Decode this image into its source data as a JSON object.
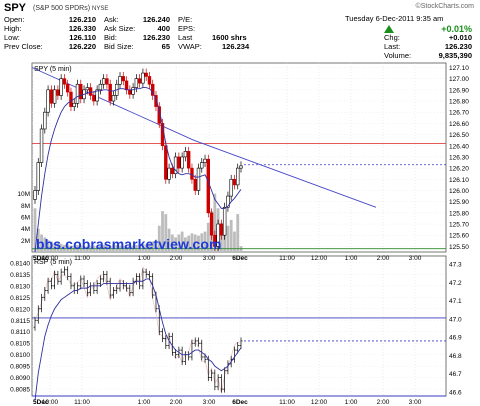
{
  "header": {
    "symbol": "SPY",
    "symbol_desc": "(S&P 500 SPDRs)",
    "exchange": "NYSE",
    "brand": "©StockCharts.com",
    "date": "Tuesday 6-Dec-2011 9:35 am",
    "change_pct": "+0.01%",
    "quote": {
      "open_label": "Open:",
      "open": "126.210",
      "high_label": "High:",
      "high": "126.330",
      "low_label": "Low:",
      "low": "126.110",
      "prev_label": "Prev Close:",
      "prev": "126.220",
      "ask_label": "Ask:",
      "ask": "126.240",
      "asksize_label": "Ask Size:",
      "asksize": "400",
      "bid_label": "Bid:",
      "bid": "126.230",
      "bidsize_label": "Bid Size:",
      "bidsize": "65",
      "pe_label": "P/E:",
      "eps_label": "EPS:",
      "last_label": "Last",
      "last_shares": "1600 shrs",
      "vwap_label": "VWAP:",
      "vwap": "126.234",
      "chg_label": "Chg:",
      "chg": "+0.010",
      "last2_label": "Last:",
      "last2": "126.230",
      "volume_label": "Volume:",
      "volume": "9,835,390"
    }
  },
  "watermark": "bbs.cobrasmarketview.com",
  "colors": {
    "up": "#000000",
    "down": "#cc0000",
    "ma": "#3030a0",
    "trend": "#4848c8",
    "hline_red": "#e04040",
    "hline_green": "#2a8a2a",
    "hline_blue": "#3a3ac0",
    "volume": "#bdbdbd",
    "rsi_aux": "#e8b4b4"
  },
  "chart_data": [
    {
      "type": "candlestick",
      "panel_label": "SPY (5 min)",
      "x_tick_labels": [
        "5Dec",
        "10:00",
        "11:00",
        "1:00",
        "2:00",
        "3:00",
        "6Dec",
        "11:00",
        "12:00",
        "1:00",
        "2:00",
        "3:00"
      ],
      "y_tick_labels": [
        "127.10",
        "127.00",
        "126.90",
        "126.80",
        "126.70",
        "126.60",
        "126.50",
        "126.40",
        "126.30",
        "126.20",
        "126.10",
        "126.00",
        "125.90",
        "125.80",
        "125.70",
        "125.60",
        "125.50"
      ],
      "ylim": [
        125.45,
        127.14
      ],
      "volume_tick_labels": [
        "10M",
        "8M",
        "6M",
        "4M",
        "2M"
      ],
      "close": [
        126.0,
        126.25,
        126.55,
        126.7,
        126.9,
        126.78,
        126.9,
        126.85,
        127.0,
        126.95,
        126.88,
        126.75,
        126.78,
        126.95,
        126.82,
        126.9,
        126.92,
        126.85,
        126.8,
        126.9,
        126.95,
        127.0,
        126.95,
        126.8,
        126.85,
        126.95,
        127.02,
        126.98,
        126.9,
        126.86,
        126.92,
        127.0,
        126.96,
        127.05,
        127.02,
        126.95,
        126.85,
        126.75,
        126.6,
        126.4,
        126.1,
        126.2,
        126.15,
        126.3,
        126.2,
        126.3,
        126.35,
        126.2,
        126.1,
        126.0,
        126.2,
        126.25,
        126.28,
        125.8,
        125.6,
        125.5,
        125.7,
        125.6,
        125.85,
        125.95,
        126.1,
        126.05,
        126.2,
        126.22
      ],
      "ma": [
        125.45,
        125.7,
        125.95,
        126.15,
        126.32,
        126.45,
        126.55,
        126.63,
        126.7,
        126.75,
        126.78,
        126.8,
        126.82,
        126.84,
        126.85,
        126.86,
        126.87,
        126.88,
        126.88,
        126.89,
        126.89,
        126.9,
        126.9,
        126.89,
        126.89,
        126.9,
        126.91,
        126.91,
        126.9,
        126.9,
        126.9,
        126.91,
        126.91,
        126.92,
        126.92,
        126.91,
        126.88,
        126.82,
        126.72,
        126.58,
        126.42,
        126.3,
        126.22,
        126.18,
        126.15,
        126.14,
        126.15,
        126.15,
        126.14,
        126.12,
        126.12,
        126.13,
        126.14,
        126.08,
        126.0,
        125.92,
        125.88,
        125.84,
        125.84,
        125.86,
        125.9,
        125.93,
        125.97,
        126.01
      ],
      "volume_m": [
        7.5,
        4.0,
        3.0,
        2.5,
        2.0,
        1.8,
        1.5,
        1.6,
        1.4,
        1.2,
        1.3,
        1.1,
        1.0,
        1.2,
        1.1,
        1.0,
        0.9,
        1.0,
        1.1,
        0.9,
        1.0,
        1.2,
        1.1,
        1.0,
        1.3,
        1.2,
        1.1,
        1.0,
        0.9,
        1.0,
        1.1,
        1.2,
        1.3,
        1.4,
        1.3,
        1.5,
        1.8,
        2.0,
        4.5,
        7.0,
        6.5,
        4.0,
        3.0,
        2.5,
        3.0,
        3.5,
        2.5,
        2.8,
        3.2,
        3.0,
        2.8,
        3.2,
        3.5,
        5.0,
        7.0,
        10.0,
        7.5,
        5.0,
        6.0,
        4.5,
        5.5,
        3.5,
        6.5,
        1.0
      ],
      "hlines": [
        126.42,
        125.48
      ],
      "last_price_line": 126.23,
      "trendline": [
        [
          0.0,
          127.1
        ],
        [
          0.47,
          126.45
        ],
        [
          1.0,
          125.85
        ]
      ]
    },
    {
      "type": "line",
      "panel_label": "RSP (5 min)",
      "x_tick_labels": [
        "5Dec",
        "10:00",
        "11:00",
        "1:00",
        "2:00",
        "3:00",
        "6Dec",
        "11:00",
        "12:00",
        "1:00",
        "2:00",
        "3:00"
      ],
      "y_tick_labels_left": [
        "0.8140",
        "0.8135",
        "0.8130",
        "0.8125",
        "0.8120",
        "0.8115",
        "0.8110",
        "0.8105",
        "0.8100",
        "0.8095",
        "0.8090",
        "0.8085"
      ],
      "ylim_left": [
        0.8082,
        0.8143
      ],
      "y_tick_labels_right": [
        "47.3",
        "47.2",
        "47.1",
        "47.0",
        "46.9",
        "46.8",
        "46.7",
        "46.6"
      ],
      "close": [
        0.8115,
        0.812,
        0.8125,
        0.8128,
        0.8132,
        0.813,
        0.8135,
        0.8132,
        0.8136,
        0.8137,
        0.8134,
        0.813,
        0.8128,
        0.813,
        0.8133,
        0.8131,
        0.8127,
        0.813,
        0.8128,
        0.8131,
        0.8133,
        0.8135,
        0.8132,
        0.8126,
        0.8128,
        0.8129,
        0.8131,
        0.813,
        0.8129,
        0.8127,
        0.8132,
        0.8134,
        0.813,
        0.8136,
        0.8135,
        0.8134,
        0.8126,
        0.812,
        0.811,
        0.8107,
        0.8104,
        0.8108,
        0.8101,
        0.81,
        0.8102,
        0.8097,
        0.81,
        0.8099,
        0.8105,
        0.8106,
        0.8105,
        0.8099,
        0.8098,
        0.809,
        0.8092,
        0.8086,
        0.809,
        0.8085,
        0.8093,
        0.8096,
        0.8098,
        0.8102,
        0.8104,
        0.8106
      ],
      "ma": [
        0.808,
        0.8092,
        0.81,
        0.8108,
        0.8113,
        0.8117,
        0.812,
        0.8122,
        0.8124,
        0.8125,
        0.8126,
        0.8127,
        0.8128,
        0.8128,
        0.8129,
        0.8129,
        0.8129,
        0.813,
        0.813,
        0.813,
        0.813,
        0.8131,
        0.8131,
        0.8131,
        0.8131,
        0.8131,
        0.8131,
        0.8131,
        0.8131,
        0.8131,
        0.8131,
        0.8132,
        0.8132,
        0.8132,
        0.8133,
        0.8133,
        0.813,
        0.8126,
        0.812,
        0.8114,
        0.8109,
        0.8106,
        0.8104,
        0.8102,
        0.8101,
        0.81,
        0.81,
        0.81,
        0.8101,
        0.8102,
        0.8102,
        0.8101,
        0.81,
        0.8098,
        0.8097,
        0.8095,
        0.8094,
        0.8093,
        0.8094,
        0.8095,
        0.8097,
        0.8099,
        0.8101,
        0.8103
      ],
      "hlines": [
        0.8116,
        0.8082
      ],
      "last_price_line": 0.8106
    }
  ]
}
